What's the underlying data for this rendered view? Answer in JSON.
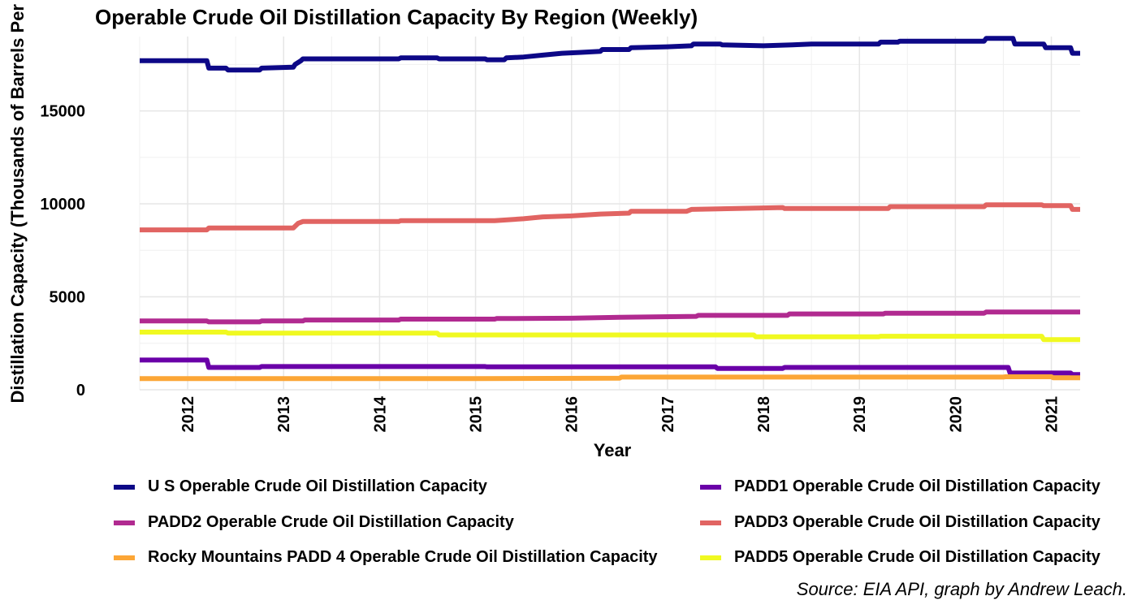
{
  "chart_data": {
    "type": "line",
    "title": "Operable Crude Oil Distillation Capacity By Region (Weekly)",
    "xlabel": "Year",
    "ylabel": "Distillation Capacity (Thousands of Barrels Per",
    "caption": "Source: EIA API, graph by Andrew Leach.",
    "xlim": [
      2011.5,
      2021.3
    ],
    "ylim": [
      0,
      19000
    ],
    "x_ticks": [
      "2012",
      "2013",
      "2014",
      "2015",
      "2016",
      "2017",
      "2018",
      "2019",
      "2020",
      "2021"
    ],
    "y_ticks": [
      "0",
      "5000",
      "10000",
      "15000"
    ],
    "grid": true,
    "legend_position": "bottom",
    "series": [
      {
        "name": "U S Operable Crude Oil Distillation Capacity",
        "color": "#0d0887",
        "x": [
          2011.5,
          2012.2,
          2012.22,
          2012.4,
          2012.42,
          2012.75,
          2012.77,
          2013.1,
          2013.12,
          2013.18,
          2013.2,
          2014.2,
          2014.22,
          2014.6,
          2014.62,
          2015.1,
          2015.12,
          2015.3,
          2015.32,
          2015.5,
          2015.7,
          2015.9,
          2016.1,
          2016.3,
          2016.32,
          2016.6,
          2016.62,
          2017.0,
          2017.25,
          2017.27,
          2017.55,
          2017.57,
          2018.0,
          2018.3,
          2018.5,
          2019.2,
          2019.22,
          2019.4,
          2019.42,
          2020.3,
          2020.32,
          2020.6,
          2020.62,
          2020.92,
          2020.94,
          2021.2,
          2021.22,
          2021.3
        ],
        "y": [
          17700,
          17700,
          17300,
          17300,
          17200,
          17200,
          17300,
          17350,
          17500,
          17700,
          17800,
          17800,
          17850,
          17850,
          17800,
          17800,
          17750,
          17750,
          17850,
          17900,
          18000,
          18100,
          18150,
          18200,
          18300,
          18300,
          18400,
          18450,
          18500,
          18600,
          18600,
          18550,
          18500,
          18550,
          18600,
          18600,
          18700,
          18700,
          18750,
          18750,
          18900,
          18900,
          18600,
          18600,
          18400,
          18400,
          18100,
          18100
        ]
      },
      {
        "name": "PADD1 Operable Crude Oil Distillation Capacity",
        "color": "#6a00a8",
        "x": [
          2011.5,
          2012.2,
          2012.22,
          2012.75,
          2012.77,
          2015.1,
          2015.12,
          2017.5,
          2017.52,
          2018.2,
          2018.22,
          2020.55,
          2020.57,
          2021.2,
          2021.22,
          2021.3
        ],
        "y": [
          1600,
          1600,
          1200,
          1200,
          1250,
          1250,
          1230,
          1230,
          1150,
          1150,
          1200,
          1200,
          900,
          900,
          820,
          820
        ]
      },
      {
        "name": "PADD2 Operable Crude Oil Distillation Capacity",
        "color": "#b12a90",
        "x": [
          2011.5,
          2012.2,
          2012.22,
          2012.75,
          2012.77,
          2013.2,
          2013.22,
          2014.2,
          2014.22,
          2015.2,
          2015.22,
          2016.0,
          2016.5,
          2017.3,
          2017.32,
          2018.25,
          2018.27,
          2019.25,
          2019.27,
          2020.3,
          2020.32,
          2021.3
        ],
        "y": [
          3700,
          3700,
          3650,
          3650,
          3700,
          3700,
          3750,
          3750,
          3800,
          3800,
          3830,
          3850,
          3900,
          3950,
          4000,
          4000,
          4080,
          4080,
          4120,
          4120,
          4180,
          4180
        ]
      },
      {
        "name": "PADD3 Operable Crude Oil Distillation Capacity",
        "color": "#e16462",
        "x": [
          2011.5,
          2012.2,
          2012.22,
          2013.1,
          2013.15,
          2013.2,
          2014.2,
          2014.22,
          2015.2,
          2015.5,
          2015.7,
          2016.0,
          2016.3,
          2016.6,
          2016.62,
          2017.2,
          2017.25,
          2018.2,
          2018.22,
          2019.3,
          2019.32,
          2020.3,
          2020.32,
          2020.9,
          2020.92,
          2021.2,
          2021.22,
          2021.3
        ],
        "y": [
          8600,
          8600,
          8700,
          8700,
          8950,
          9050,
          9050,
          9100,
          9100,
          9200,
          9300,
          9350,
          9450,
          9500,
          9600,
          9600,
          9700,
          9800,
          9750,
          9750,
          9850,
          9850,
          9950,
          9950,
          9900,
          9900,
          9700,
          9700
        ]
      },
      {
        "name": "Rocky Mountains PADD 4 Operable Crude Oil Distillation Capacity",
        "color": "#fca636",
        "x": [
          2011.5,
          2015.0,
          2016.5,
          2016.52,
          2020.5,
          2020.52,
          2021.0,
          2021.02,
          2021.3
        ],
        "y": [
          600,
          600,
          620,
          680,
          680,
          700,
          700,
          640,
          640
        ]
      },
      {
        "name": "PADD5 Operable Crude Oil Distillation Capacity",
        "color": "#f0f921",
        "x": [
          2011.5,
          2012.4,
          2012.42,
          2014.6,
          2014.62,
          2017.9,
          2017.92,
          2019.2,
          2019.22,
          2020.9,
          2020.92,
          2021.3
        ],
        "y": [
          3100,
          3100,
          3050,
          3050,
          2950,
          2950,
          2850,
          2850,
          2880,
          2880,
          2700,
          2700
        ]
      }
    ]
  }
}
